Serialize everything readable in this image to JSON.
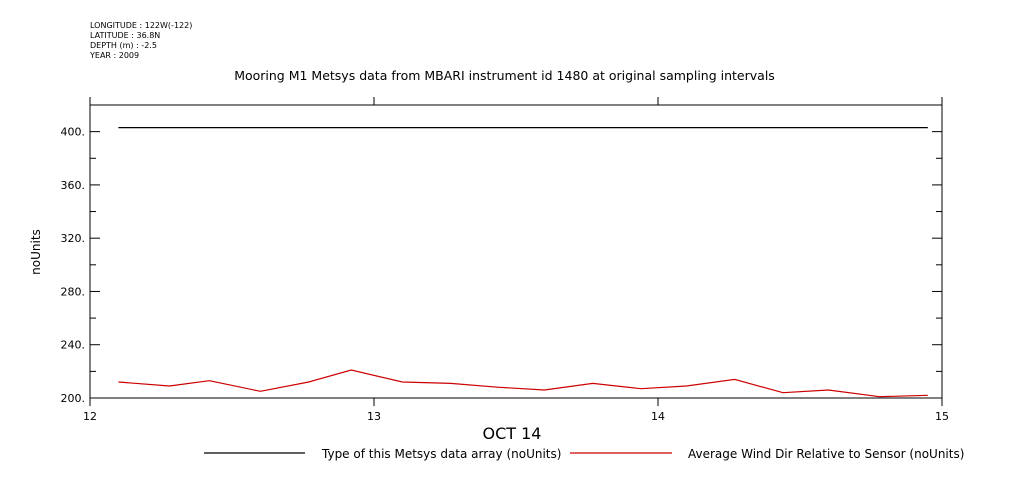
{
  "header": {
    "longitude": "LONGITUDE : 122W(-122)",
    "latitude": "LATITUDE : 36.8N",
    "depth": "DEPTH (m) : -2.5",
    "year": "YEAR : 2009"
  },
  "chart_data": {
    "type": "line",
    "title": "Mooring M1 Metsys data from MBARI instrument id 1480 at original sampling intervals",
    "xlabel": "OCT 14",
    "ylabel": "noUnits",
    "xlim": [
      12,
      15
    ],
    "ylim": [
      200,
      420
    ],
    "x_ticks": [
      "12",
      "13",
      "14",
      "15"
    ],
    "y_ticks": [
      "200.",
      "240.",
      "280.",
      "320.",
      "360.",
      "400."
    ],
    "grid": false,
    "legend_position": "bottom",
    "series": [
      {
        "name": "Type of this Metsys data array (noUnits)",
        "color": "#000000",
        "x": [
          12.1,
          14.95
        ],
        "y": [
          403,
          403
        ]
      },
      {
        "name": "Average Wind Dir Relative to Sensor (noUnits)",
        "color": "#cc0000",
        "x": [
          12.1,
          12.28,
          12.42,
          12.6,
          12.77,
          12.92,
          13.1,
          13.27,
          13.44,
          13.6,
          13.77,
          13.94,
          14.1,
          14.27,
          14.44,
          14.6,
          14.78,
          14.95
        ],
        "y": [
          212,
          209,
          213,
          205,
          212,
          221,
          212,
          211,
          208,
          206,
          211,
          207,
          209,
          214,
          204,
          206,
          201,
          202
        ]
      }
    ]
  }
}
